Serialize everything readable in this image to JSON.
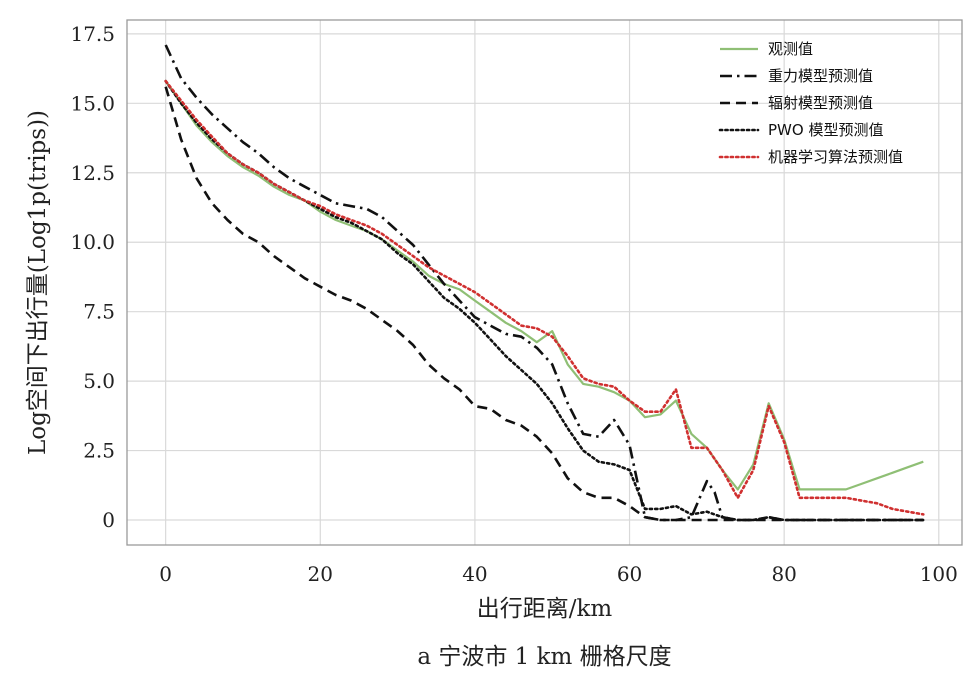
{
  "chart_data": {
    "type": "line",
    "caption": "a 宁波市 1 km 栅格尺度",
    "xlabel": "出行距离/km",
    "ylabel": "Log空间下出行量(Log1p(trips))",
    "xlim": [
      -5,
      103
    ],
    "ylim": [
      -0.9,
      18.0
    ],
    "xticks": [
      0,
      20,
      40,
      60,
      80,
      100
    ],
    "xtick_labels": [
      "0",
      "20",
      "40",
      "60",
      "80",
      "100"
    ],
    "yticks": [
      0,
      2.5,
      5,
      7.5,
      10,
      12.5,
      15,
      17.5
    ],
    "ytick_labels": [
      "0",
      "2.5",
      "5.0",
      "7.5",
      "10.0",
      "12.5",
      "15.0",
      "17.5"
    ],
    "grid": true,
    "legend_position": "top-right",
    "series": [
      {
        "name": "观测值",
        "color": "#8fbf75",
        "dash": "solid",
        "points": [
          [
            0,
            15.8
          ],
          [
            2,
            15.0
          ],
          [
            4,
            14.2
          ],
          [
            6,
            13.6
          ],
          [
            8,
            13.1
          ],
          [
            10,
            12.7
          ],
          [
            12,
            12.4
          ],
          [
            14,
            12.0
          ],
          [
            16,
            11.7
          ],
          [
            18,
            11.5
          ],
          [
            20,
            11.1
          ],
          [
            22,
            10.8
          ],
          [
            24,
            10.6
          ],
          [
            26,
            10.4
          ],
          [
            28,
            10.1
          ],
          [
            30,
            9.7
          ],
          [
            32,
            9.3
          ],
          [
            34,
            8.8
          ],
          [
            36,
            8.5
          ],
          [
            38,
            8.3
          ],
          [
            40,
            7.9
          ],
          [
            42,
            7.5
          ],
          [
            44,
            7.1
          ],
          [
            46,
            6.8
          ],
          [
            48,
            6.4
          ],
          [
            50,
            6.8
          ],
          [
            52,
            5.6
          ],
          [
            54,
            4.9
          ],
          [
            56,
            4.8
          ],
          [
            58,
            4.6
          ],
          [
            60,
            4.3
          ],
          [
            62,
            3.7
          ],
          [
            64,
            3.8
          ],
          [
            66,
            4.3
          ],
          [
            68,
            3.1
          ],
          [
            70,
            2.6
          ],
          [
            72,
            1.8
          ],
          [
            74,
            1.1
          ],
          [
            76,
            2.0
          ],
          [
            78,
            4.2
          ],
          [
            80,
            2.9
          ],
          [
            82,
            1.1
          ],
          [
            84,
            1.1
          ],
          [
            86,
            1.1
          ],
          [
            88,
            1.1
          ],
          [
            90,
            1.3
          ],
          [
            92,
            1.5
          ],
          [
            94,
            1.7
          ],
          [
            96,
            1.9
          ],
          [
            98,
            2.1
          ]
        ]
      },
      {
        "name": "重力模型预测值",
        "color": "#111111",
        "dash": "dashdot",
        "points": [
          [
            0,
            17.1
          ],
          [
            2,
            15.9
          ],
          [
            4,
            15.2
          ],
          [
            6,
            14.6
          ],
          [
            8,
            14.1
          ],
          [
            10,
            13.6
          ],
          [
            12,
            13.2
          ],
          [
            14,
            12.7
          ],
          [
            16,
            12.3
          ],
          [
            18,
            12.0
          ],
          [
            20,
            11.7
          ],
          [
            22,
            11.4
          ],
          [
            24,
            11.3
          ],
          [
            26,
            11.2
          ],
          [
            28,
            10.9
          ],
          [
            30,
            10.4
          ],
          [
            32,
            9.9
          ],
          [
            34,
            9.2
          ],
          [
            36,
            8.5
          ],
          [
            38,
            7.9
          ],
          [
            40,
            7.3
          ],
          [
            42,
            7.0
          ],
          [
            44,
            6.7
          ],
          [
            46,
            6.6
          ],
          [
            48,
            6.2
          ],
          [
            50,
            5.6
          ],
          [
            52,
            4.2
          ],
          [
            54,
            3.1
          ],
          [
            56,
            3.0
          ],
          [
            58,
            3.6
          ],
          [
            60,
            2.7
          ],
          [
            62,
            0.1
          ],
          [
            64,
            0.0
          ],
          [
            66,
            0.0
          ],
          [
            68,
            0.1
          ],
          [
            70,
            1.4
          ],
          [
            71,
            1.0
          ],
          [
            72,
            0.1
          ],
          [
            74,
            0.0
          ],
          [
            76,
            0.0
          ],
          [
            78,
            0.1
          ],
          [
            80,
            0.0
          ],
          [
            84,
            0.0
          ],
          [
            90,
            0.0
          ],
          [
            98,
            0.0
          ]
        ]
      },
      {
        "name": "辐射模型预测值",
        "color": "#111111",
        "dash": "dashed",
        "points": [
          [
            0,
            15.6
          ],
          [
            2,
            13.7
          ],
          [
            4,
            12.3
          ],
          [
            6,
            11.4
          ],
          [
            8,
            10.8
          ],
          [
            10,
            10.3
          ],
          [
            12,
            10.0
          ],
          [
            14,
            9.5
          ],
          [
            16,
            9.1
          ],
          [
            18,
            8.7
          ],
          [
            20,
            8.4
          ],
          [
            22,
            8.1
          ],
          [
            24,
            7.9
          ],
          [
            26,
            7.6
          ],
          [
            28,
            7.2
          ],
          [
            30,
            6.8
          ],
          [
            32,
            6.3
          ],
          [
            34,
            5.6
          ],
          [
            36,
            5.1
          ],
          [
            38,
            4.7
          ],
          [
            40,
            4.1
          ],
          [
            42,
            4.0
          ],
          [
            44,
            3.6
          ],
          [
            46,
            3.4
          ],
          [
            48,
            3.0
          ],
          [
            50,
            2.4
          ],
          [
            52,
            1.5
          ],
          [
            54,
            1.0
          ],
          [
            56,
            0.8
          ],
          [
            58,
            0.8
          ],
          [
            60,
            0.5
          ],
          [
            62,
            0.1
          ],
          [
            64,
            0.0
          ],
          [
            70,
            0.0
          ],
          [
            80,
            0.0
          ],
          [
            90,
            0.0
          ],
          [
            98,
            0.0
          ]
        ]
      },
      {
        "name": "PWO 模型预测值",
        "color": "#111111",
        "dash": "dotted",
        "points": [
          [
            0,
            15.8
          ],
          [
            2,
            15.0
          ],
          [
            4,
            14.3
          ],
          [
            6,
            13.7
          ],
          [
            8,
            13.2
          ],
          [
            10,
            12.8
          ],
          [
            12,
            12.5
          ],
          [
            14,
            12.1
          ],
          [
            16,
            11.8
          ],
          [
            18,
            11.5
          ],
          [
            20,
            11.2
          ],
          [
            22,
            10.9
          ],
          [
            24,
            10.7
          ],
          [
            26,
            10.4
          ],
          [
            28,
            10.1
          ],
          [
            30,
            9.6
          ],
          [
            32,
            9.2
          ],
          [
            34,
            8.6
          ],
          [
            36,
            8.0
          ],
          [
            38,
            7.6
          ],
          [
            40,
            7.1
          ],
          [
            42,
            6.5
          ],
          [
            44,
            5.9
          ],
          [
            46,
            5.4
          ],
          [
            48,
            4.9
          ],
          [
            50,
            4.2
          ],
          [
            52,
            3.3
          ],
          [
            54,
            2.5
          ],
          [
            56,
            2.1
          ],
          [
            58,
            2.0
          ],
          [
            60,
            1.8
          ],
          [
            62,
            0.4
          ],
          [
            64,
            0.4
          ],
          [
            66,
            0.5
          ],
          [
            68,
            0.2
          ],
          [
            70,
            0.3
          ],
          [
            72,
            0.1
          ],
          [
            74,
            0.0
          ],
          [
            76,
            0.0
          ],
          [
            78,
            0.1
          ],
          [
            80,
            0.0
          ],
          [
            84,
            0.0
          ],
          [
            90,
            0.0
          ],
          [
            98,
            0.0
          ]
        ]
      },
      {
        "name": "机器学习算法预测值",
        "color": "#d03030",
        "dash": "dotted",
        "points": [
          [
            0,
            15.8
          ],
          [
            2,
            15.1
          ],
          [
            4,
            14.4
          ],
          [
            6,
            13.8
          ],
          [
            8,
            13.2
          ],
          [
            10,
            12.8
          ],
          [
            12,
            12.5
          ],
          [
            14,
            12.1
          ],
          [
            16,
            11.8
          ],
          [
            18,
            11.5
          ],
          [
            20,
            11.3
          ],
          [
            22,
            11.0
          ],
          [
            24,
            10.8
          ],
          [
            26,
            10.6
          ],
          [
            28,
            10.3
          ],
          [
            30,
            9.9
          ],
          [
            32,
            9.5
          ],
          [
            34,
            9.1
          ],
          [
            36,
            8.8
          ],
          [
            38,
            8.5
          ],
          [
            40,
            8.2
          ],
          [
            42,
            7.8
          ],
          [
            44,
            7.4
          ],
          [
            46,
            7.0
          ],
          [
            48,
            6.9
          ],
          [
            50,
            6.6
          ],
          [
            52,
            5.9
          ],
          [
            54,
            5.1
          ],
          [
            56,
            4.9
          ],
          [
            58,
            4.8
          ],
          [
            60,
            4.3
          ],
          [
            62,
            3.9
          ],
          [
            64,
            3.9
          ],
          [
            66,
            4.7
          ],
          [
            68,
            2.6
          ],
          [
            70,
            2.6
          ],
          [
            72,
            1.8
          ],
          [
            74,
            0.8
          ],
          [
            76,
            1.8
          ],
          [
            78,
            4.1
          ],
          [
            80,
            2.8
          ],
          [
            82,
            0.8
          ],
          [
            84,
            0.8
          ],
          [
            86,
            0.8
          ],
          [
            88,
            0.8
          ],
          [
            90,
            0.7
          ],
          [
            92,
            0.6
          ],
          [
            94,
            0.4
          ],
          [
            96,
            0.3
          ],
          [
            98,
            0.2
          ]
        ]
      }
    ]
  }
}
